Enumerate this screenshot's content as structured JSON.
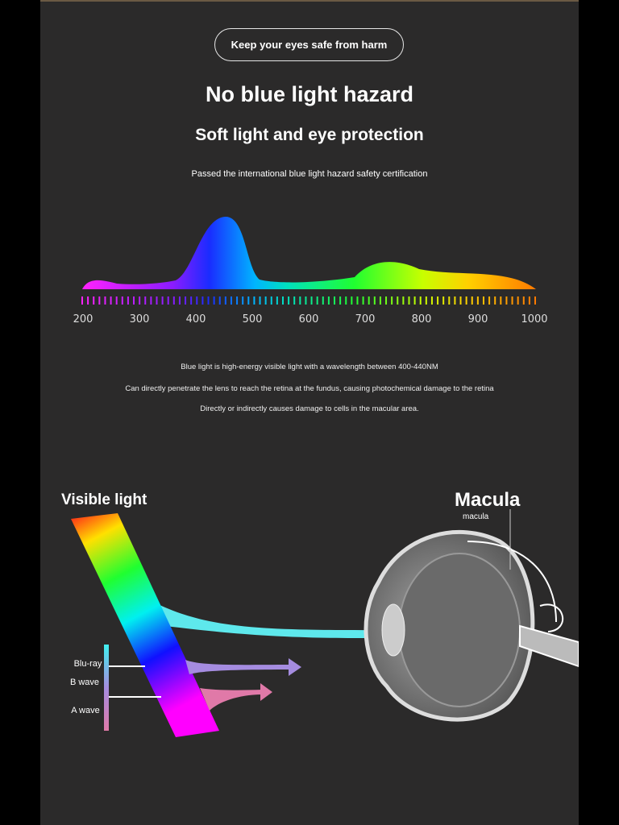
{
  "header": {
    "pill_label": "Keep your eyes safe from harm",
    "title": "No blue light hazard",
    "subtitle": "Soft light and eye protection",
    "certification": "Passed the international blue light hazard safety certification"
  },
  "spectrum": {
    "axis_labels": [
      "200",
      "300",
      "400",
      "500",
      "600",
      "700",
      "800",
      "900",
      "1000"
    ]
  },
  "info": {
    "lines": [
      "Blue light is high-energy visible light with a wavelength between 400-440NM",
      "Can directly penetrate the lens to reach the retina at the fundus, causing photochemical damage to the retina",
      "Directly or indirectly causes damage to cells in the macular area."
    ]
  },
  "diagram": {
    "visible_light_label": "Visible light",
    "macula_label": "Macula",
    "macula_sublabel": "macula",
    "bluray_label": "Blu-ray",
    "b_wave_label": "B wave",
    "a_wave_label": "A wave"
  },
  "colors": {
    "background": "#2b2a2a",
    "cyan": "#5ee8ec",
    "violet": "#a58ce0",
    "pink": "#e079a8"
  }
}
